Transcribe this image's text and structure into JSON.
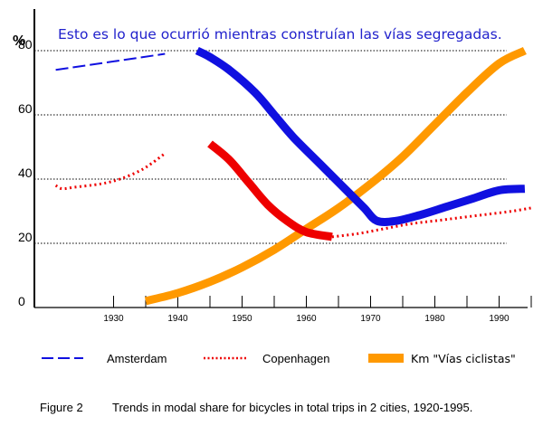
{
  "chart_data": {
    "type": "line",
    "annotation": "Esto es lo que ocurrió mientras construían las vías segregadas.",
    "y_unit_label": "%",
    "ylim": [
      0,
      90
    ],
    "xlim": [
      1920,
      1995
    ],
    "y_ticks": [
      "0",
      "20",
      "40",
      "60",
      "80"
    ],
    "x_ticks": [
      "1930",
      "1940",
      "1950",
      "1960",
      "1970",
      "1980",
      "1990"
    ],
    "grid": "horizontal dotted at 20, 40, 60, 80",
    "caption_label": "Figure 2",
    "caption_text": "Trends in modal share for bicycles in total trips in 2 cities, 1920-1995.",
    "colors": {
      "amsterdam": "#1010e0",
      "copenhagen": "#ee0000",
      "km": "#ff9900",
      "annotation": "#2222cc"
    },
    "series": [
      {
        "name": "Amsterdam",
        "style": "dashed",
        "segments": [
          [
            [
              1921,
              74
            ],
            [
              1938,
              79
            ]
          ],
          [
            [
              1943,
              80
            ],
            [
              1945,
              78
            ],
            [
              1948,
              74
            ],
            [
              1952,
              67
            ],
            [
              1955,
              60
            ],
            [
              1958,
              53
            ],
            [
              1962,
              45
            ],
            [
              1966,
              37
            ],
            [
              1969,
              31
            ],
            [
              1971,
              27
            ],
            [
              1974,
              27
            ],
            [
              1978,
              29
            ],
            [
              1982,
              31.5
            ],
            [
              1986,
              34
            ],
            [
              1990,
              36.5
            ],
            [
              1994,
              37
            ]
          ]
        ]
      },
      {
        "name": "Copenhagen",
        "style": "dotted",
        "segments": [
          [
            [
              1921,
              38
            ],
            [
              1922,
              37
            ],
            [
              1924,
              37.5
            ],
            [
              1928,
              38.5
            ],
            [
              1931,
              40
            ],
            [
              1934,
              42.5
            ],
            [
              1936,
              45
            ],
            [
              1938,
              48
            ]
          ],
          [
            [
              1945,
              51
            ],
            [
              1948,
              46
            ],
            [
              1951,
              39
            ],
            [
              1954,
              32
            ],
            [
              1957,
              27
            ],
            [
              1960,
              23.5
            ],
            [
              1964,
              22
            ]
          ],
          [
            [
              1964,
              22
            ],
            [
              1968,
              23
            ],
            [
              1972,
              24.5
            ],
            [
              1976,
              26
            ],
            [
              1980,
              27
            ],
            [
              1984,
              28
            ],
            [
              1988,
              29
            ],
            [
              1992,
              30
            ],
            [
              1995,
              31
            ]
          ]
        ]
      },
      {
        "name": "Km \"Vías ciclistas\"",
        "style": "thick",
        "segments": [
          [
            [
              1935,
              2
            ],
            [
              1940,
              4.5
            ],
            [
              1945,
              8
            ],
            [
              1950,
              12.5
            ],
            [
              1955,
              18
            ],
            [
              1960,
              24.5
            ],
            [
              1965,
              31
            ],
            [
              1970,
              38.5
            ],
            [
              1975,
              47
            ],
            [
              1980,
              57
            ],
            [
              1985,
              67
            ],
            [
              1990,
              76
            ],
            [
              1994,
              80
            ]
          ]
        ]
      }
    ],
    "legend": {
      "placement": "bottom",
      "entries": [
        "Amsterdam",
        "Copenhagen",
        "Km \"Vías ciclistas\""
      ]
    }
  }
}
